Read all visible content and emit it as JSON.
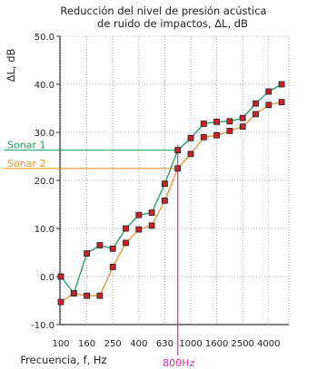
{
  "chart_data": {
    "type": "line",
    "title_lines": [
      "Reducción del nivel de presión acústica",
      "de ruido de impactos, ΔL, dB"
    ],
    "ylabel": "ΔL, dB",
    "xlabel": "Frecuencia, f, Hz",
    "ylim": [
      -10,
      50
    ],
    "yticks": [
      "-10.0",
      "0.0",
      "10.0",
      "20.0",
      "30.0",
      "40.0",
      "50.0"
    ],
    "ytick_values": [
      -10,
      0,
      10,
      20,
      30,
      40,
      50
    ],
    "xtick_labels": [
      "100",
      "160",
      "250",
      "400",
      "630",
      "1000",
      "1600",
      "2500",
      "4000"
    ],
    "x": [
      "100",
      "125",
      "160",
      "200",
      "250",
      "315",
      "400",
      "500",
      "630",
      "800",
      "1000",
      "1250",
      "1600",
      "2000",
      "2500",
      "3150",
      "4000",
      "5000"
    ],
    "series": [
      {
        "name": "Sonar 1",
        "color": "#1aa05a",
        "values": [
          0,
          -3.5,
          4.8,
          6.5,
          5.8,
          10,
          12.8,
          13.3,
          19.3,
          26.3,
          28.8,
          31.8,
          32.2,
          32.3,
          33,
          36,
          38.5,
          40
        ]
      },
      {
        "name": "Sonar 2",
        "color": "#f0922e",
        "values": [
          -5.3,
          -3.5,
          -4,
          -4,
          2,
          7,
          9.8,
          10.6,
          15.8,
          22.5,
          25.5,
          29,
          29.4,
          30.3,
          31.2,
          33.8,
          35.7,
          36.3
        ]
      }
    ],
    "annotations": [
      {
        "label": "Sonar 1",
        "value": 26.3,
        "color": "#1aa05a"
      },
      {
        "label": "Sonar 2",
        "value": 22.5,
        "color": "#f0922e"
      },
      {
        "label": "800Hz",
        "x_index": 9,
        "color": "#d630a8"
      }
    ],
    "grid": true
  }
}
